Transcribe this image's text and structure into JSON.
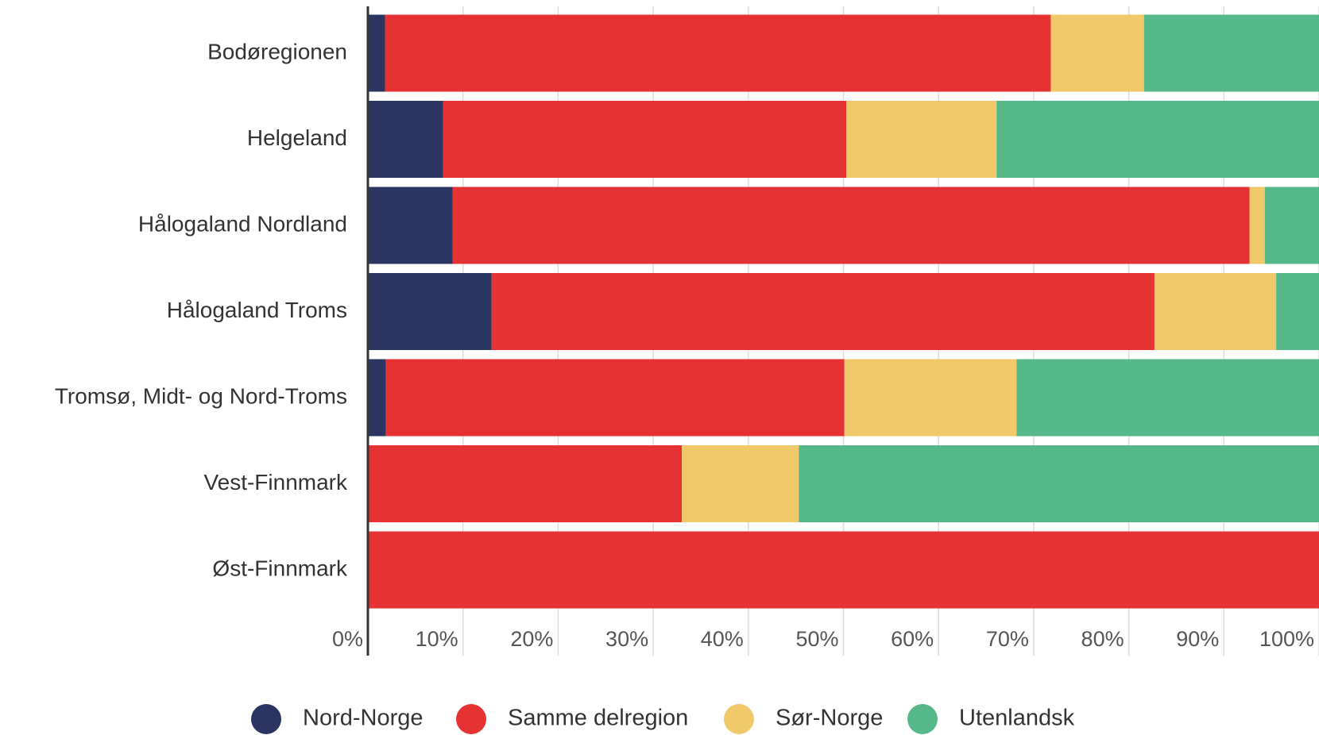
{
  "chart_data": {
    "type": "stacked-bar-horizontal",
    "categories": [
      "Bodøregionen",
      "Helgeland",
      "Hålogaland Nordland",
      "Hålogaland Troms",
      "Tromsø, Midt- og Nord-Troms",
      "Vest-Finnmark",
      "Øst-Finnmark"
    ],
    "series": [
      {
        "name": "Nord-Norge",
        "color": "#2b3561",
        "values": [
          1.8,
          7.9,
          8.9,
          13.0,
          1.9,
          0,
          0
        ]
      },
      {
        "name": "Samme delregion",
        "color": "#e63232",
        "values": [
          70.0,
          42.4,
          83.8,
          69.7,
          48.2,
          33.0,
          100
        ]
      },
      {
        "name": "Sør-Norge",
        "color": "#f0c96b",
        "values": [
          9.8,
          15.8,
          1.6,
          12.8,
          18.1,
          12.3,
          0
        ]
      },
      {
        "name": "Utenlandsk",
        "color": "#56b888",
        "values": [
          18.4,
          33.9,
          5.7,
          4.5,
          31.8,
          54.7,
          0
        ]
      }
    ],
    "xlim": [
      0,
      100
    ],
    "xticks": [
      {
        "value": 0,
        "label": "0%"
      },
      {
        "value": 10,
        "label": "10%"
      },
      {
        "value": 20,
        "label": "20%"
      },
      {
        "value": 30,
        "label": "30%"
      },
      {
        "value": 40,
        "label": "40%"
      },
      {
        "value": 50,
        "label": "50%"
      },
      {
        "value": 60,
        "label": "60%"
      },
      {
        "value": 70,
        "label": "70%"
      },
      {
        "value": 80,
        "label": "80%"
      },
      {
        "value": 90,
        "label": "90%"
      },
      {
        "value": 100,
        "label": "100%"
      }
    ],
    "grid": true,
    "legend": "bottom"
  }
}
